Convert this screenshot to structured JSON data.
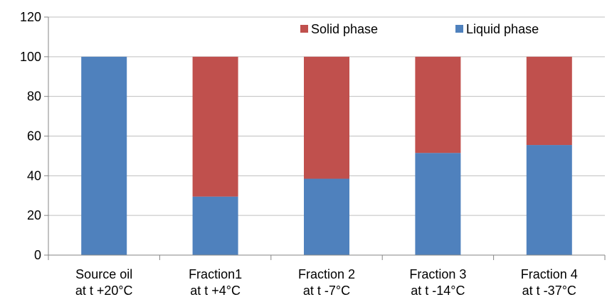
{
  "chart_data": {
    "type": "bar",
    "stacked": true,
    "categories": [
      [
        "Source oil",
        "at t +20°C"
      ],
      [
        "Fraction1",
        "at t +4°C"
      ],
      [
        "Fraction 2",
        "at t -7°C"
      ],
      [
        "Fraction 3",
        "at t -14°C"
      ],
      [
        "Fraction 4",
        "at t -37°C"
      ]
    ],
    "series": [
      {
        "name": "Liquid phase",
        "color": "#4F81BD",
        "values": [
          100,
          29.5,
          38.5,
          51.5,
          55.5
        ]
      },
      {
        "name": "Solid phase",
        "color": "#C0504D",
        "values": [
          0,
          70.5,
          61.5,
          48.5,
          44.5
        ]
      }
    ],
    "ylim": [
      0,
      120
    ],
    "yticks": [
      0,
      20,
      40,
      60,
      80,
      100,
      120
    ],
    "grid": true,
    "legend": {
      "position": "top-right",
      "order": [
        "Solid phase",
        "Liquid phase"
      ]
    },
    "title": "",
    "xlabel": "",
    "ylabel": ""
  }
}
